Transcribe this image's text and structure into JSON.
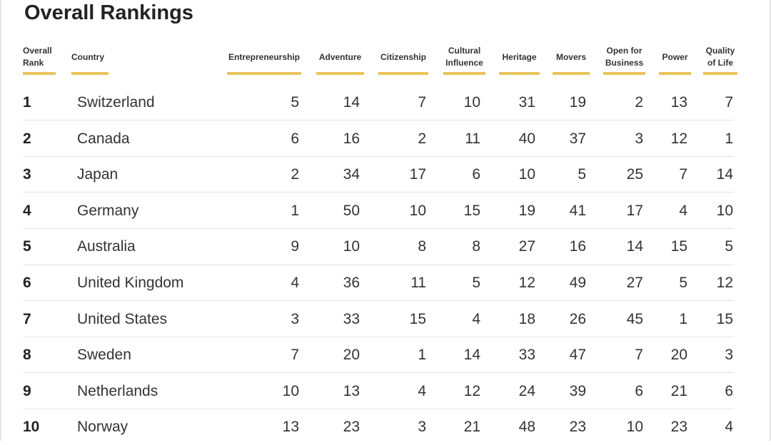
{
  "accent_color": "#e8c45a",
  "chart_data": {
    "type": "table",
    "title": "Overall Rankings",
    "columns": [
      "Overall Rank",
      "Country",
      "Entrepreneurship",
      "Adventure",
      "Citizenship",
      "Cultural Influence",
      "Heritage",
      "Movers",
      "Open for Business",
      "Power",
      "Quality of Life"
    ],
    "header_lines": [
      [
        "Overall",
        "Rank"
      ],
      [
        "Country"
      ],
      [
        "Entrepreneurship"
      ],
      [
        "Adventure"
      ],
      [
        "Citizenship"
      ],
      [
        "Cultural",
        "Influence"
      ],
      [
        "Heritage"
      ],
      [
        "Movers"
      ],
      [
        "Open for",
        "Business"
      ],
      [
        "Power"
      ],
      [
        "Quality",
        "of Life"
      ]
    ],
    "rows": [
      [
        "1",
        "Switzerland",
        "5",
        "14",
        "7",
        "10",
        "31",
        "19",
        "2",
        "13",
        "7"
      ],
      [
        "2",
        "Canada",
        "6",
        "16",
        "2",
        "11",
        "40",
        "37",
        "3",
        "12",
        "1"
      ],
      [
        "3",
        "Japan",
        "2",
        "34",
        "17",
        "6",
        "10",
        "5",
        "25",
        "7",
        "14"
      ],
      [
        "4",
        "Germany",
        "1",
        "50",
        "10",
        "15",
        "19",
        "41",
        "17",
        "4",
        "10"
      ],
      [
        "5",
        "Australia",
        "9",
        "10",
        "8",
        "8",
        "27",
        "16",
        "14",
        "15",
        "5"
      ],
      [
        "6",
        "United Kingdom",
        "4",
        "36",
        "11",
        "5",
        "12",
        "49",
        "27",
        "5",
        "12"
      ],
      [
        "7",
        "United States",
        "3",
        "33",
        "15",
        "4",
        "18",
        "26",
        "45",
        "1",
        "15"
      ],
      [
        "8",
        "Sweden",
        "7",
        "20",
        "1",
        "14",
        "33",
        "47",
        "7",
        "20",
        "3"
      ],
      [
        "9",
        "Netherlands",
        "10",
        "13",
        "4",
        "12",
        "24",
        "39",
        "6",
        "21",
        "6"
      ],
      [
        "10",
        "Norway",
        "13",
        "23",
        "3",
        "21",
        "48",
        "23",
        "10",
        "23",
        "4"
      ]
    ]
  }
}
